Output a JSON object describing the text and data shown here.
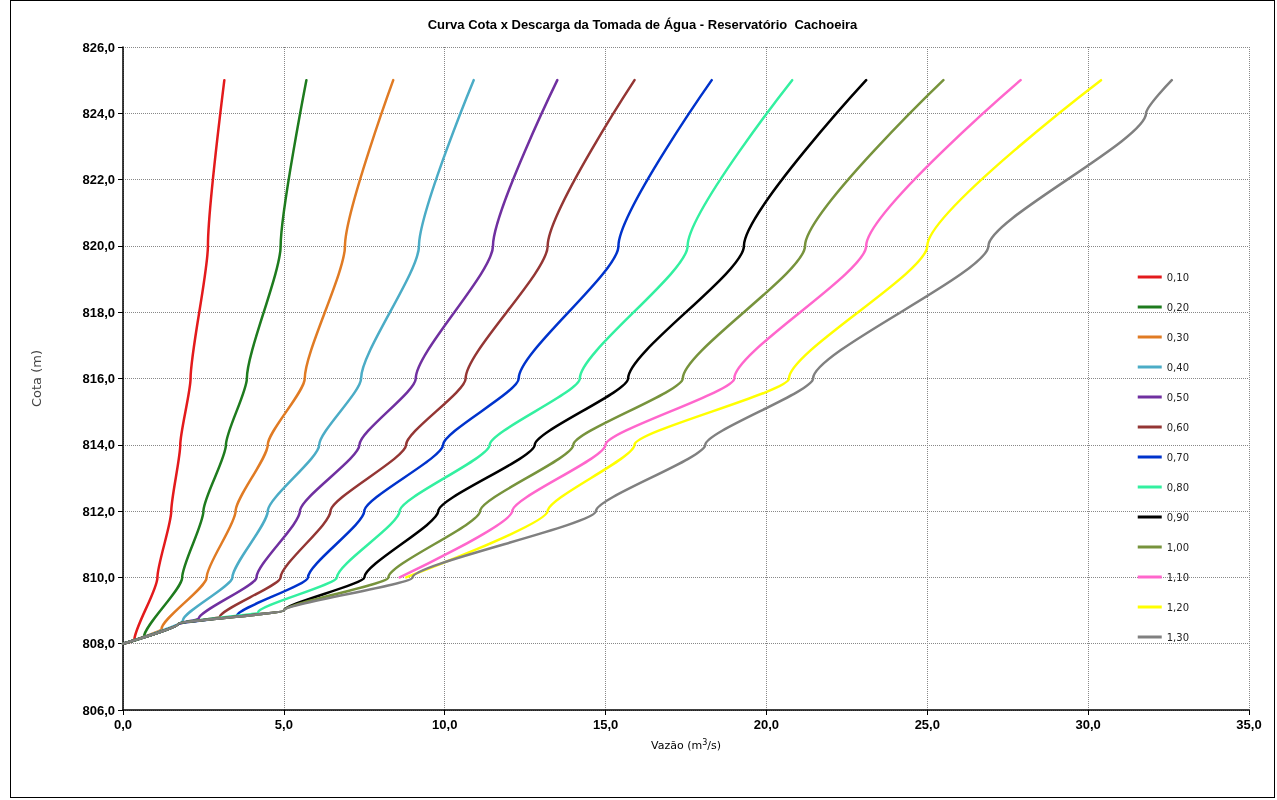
{
  "chart_data": {
    "type": "line",
    "title": "Curva Cota x Descarga da Tomada de Água - Reservatório  Cachoeira",
    "xlabel": "Vazão (m$^{3}$/s)",
    "ylabel": "Cota (m)",
    "xlim": [
      0,
      35
    ],
    "xticks": [
      {
        "value": 0,
        "label": "0,0"
      },
      {
        "value": 5,
        "label": "5,0"
      },
      {
        "value": 10,
        "label": "10,0"
      },
      {
        "value": 15,
        "label": "15,0"
      },
      {
        "value": 20,
        "label": "20,0"
      },
      {
        "value": 25,
        "label": "25,0"
      },
      {
        "value": 30,
        "label": "30,0"
      },
      {
        "value": 35,
        "label": "35,0"
      }
    ],
    "ylim": [
      806,
      826
    ],
    "yticks": [
      {
        "value": 806,
        "label": "806,0"
      },
      {
        "value": 808,
        "label": "808,0"
      },
      {
        "value": 810,
        "label": "810,0"
      },
      {
        "value": 812,
        "label": "812,0"
      },
      {
        "value": 814,
        "label": "814,0"
      },
      {
        "value": 816,
        "label": "816,0"
      },
      {
        "value": 818,
        "label": "818,0"
      },
      {
        "value": 820,
        "label": "820,0"
      },
      {
        "value": 822,
        "label": "822,0"
      },
      {
        "value": 824,
        "label": "824,0"
      },
      {
        "value": 826,
        "label": "826,0"
      }
    ],
    "grid": true,
    "legend": "right",
    "marker": "none",
    "line_style": "solid",
    "series": [
      {
        "name": "0,10",
        "color": "#e31a1c",
        "x": [
          0,
          0.35,
          1.07,
          1.5,
          1.78,
          2.1,
          2.64,
          3.15
        ],
        "values": [
          808,
          808.1,
          810,
          812,
          814,
          816,
          820,
          825
        ]
      },
      {
        "name": "0,20",
        "color": "#1e7b1e",
        "x": [
          0,
          0.65,
          1.84,
          2.5,
          3.2,
          3.85,
          4.9,
          5.7
        ],
        "values": [
          808,
          808.2,
          810,
          812,
          814,
          816,
          820,
          825
        ]
      },
      {
        "name": "0,30",
        "color": "#e07b24",
        "x": [
          0,
          1.2,
          2.6,
          3.5,
          4.5,
          5.65,
          6.9,
          8.4
        ],
        "values": [
          808,
          808.45,
          810,
          812,
          814,
          816,
          820,
          825
        ]
      },
      {
        "name": "0,40",
        "color": "#4bacc6",
        "x": [
          0,
          1.86,
          3.4,
          4.5,
          6.1,
          7.4,
          9.2,
          10.9
        ],
        "values": [
          808,
          808.7,
          810,
          812,
          814,
          816,
          820,
          825
        ]
      },
      {
        "name": "0,50",
        "color": "#7030a0",
        "x": [
          0,
          1.72,
          2.35,
          4.15,
          5.5,
          7.35,
          9.1,
          11.5,
          13.5
        ],
        "values": [
          808,
          808.6,
          808.75,
          810,
          812,
          814,
          816,
          820,
          825
        ]
      },
      {
        "name": "0,60",
        "color": "#943634",
        "x": [
          0,
          1.72,
          3.0,
          4.9,
          6.45,
          8.8,
          10.65,
          13.2,
          15.9
        ],
        "values": [
          808,
          808.6,
          808.8,
          810,
          812,
          814,
          816,
          820,
          825
        ]
      },
      {
        "name": "0,70",
        "color": "#0033cc",
        "x": [
          0,
          1.72,
          3.55,
          5.75,
          7.5,
          9.95,
          12.3,
          15.4,
          18.3
        ],
        "values": [
          808,
          808.6,
          808.85,
          810,
          812,
          814,
          816,
          820,
          825
        ]
      },
      {
        "name": "0,80",
        "color": "#33f0a0",
        "x": [
          0,
          1.72,
          4.2,
          6.65,
          8.6,
          11.4,
          14.2,
          17.55,
          20.8
        ],
        "values": [
          808,
          808.6,
          808.95,
          810,
          812,
          814,
          816,
          820,
          825
        ]
      },
      {
        "name": "0,90",
        "color": "#000000",
        "x": [
          0,
          1.72,
          5.0,
          7.5,
          9.8,
          12.8,
          15.7,
          19.3,
          23.1
        ],
        "values": [
          808,
          808.6,
          809,
          810,
          812,
          814,
          816,
          820,
          825
        ]
      },
      {
        "name": "1,00",
        "color": "#77933c",
        "x": [
          0,
          1.72,
          5.0,
          8.25,
          11.1,
          14.0,
          17.4,
          21.2,
          25.5
        ],
        "values": [
          808,
          808.6,
          809,
          810,
          812,
          814,
          816,
          820,
          825
        ]
      },
      {
        "name": "1,10",
        "color": "#ff66cc",
        "x": [
          8.6,
          12.1,
          15.0,
          19.0,
          23.1,
          27.9
        ],
        "values": [
          810,
          812,
          814,
          816,
          820,
          825
        ]
      },
      {
        "name": "1,20",
        "color": "#ffff00",
        "x": [
          8.8,
          13.2,
          15.9,
          20.7,
          25.0,
          30.4
        ],
        "values": [
          810,
          812,
          814,
          816,
          820,
          825
        ]
      },
      {
        "name": "1,30",
        "color": "#808080",
        "x": [
          0,
          1.72,
          5.0,
          9.0,
          14.7,
          18.1,
          21.45,
          26.9,
          31.8,
          32.6
        ],
        "values": [
          808,
          808.6,
          809,
          810,
          812,
          814,
          816,
          820,
          824,
          825
        ]
      }
    ]
  }
}
